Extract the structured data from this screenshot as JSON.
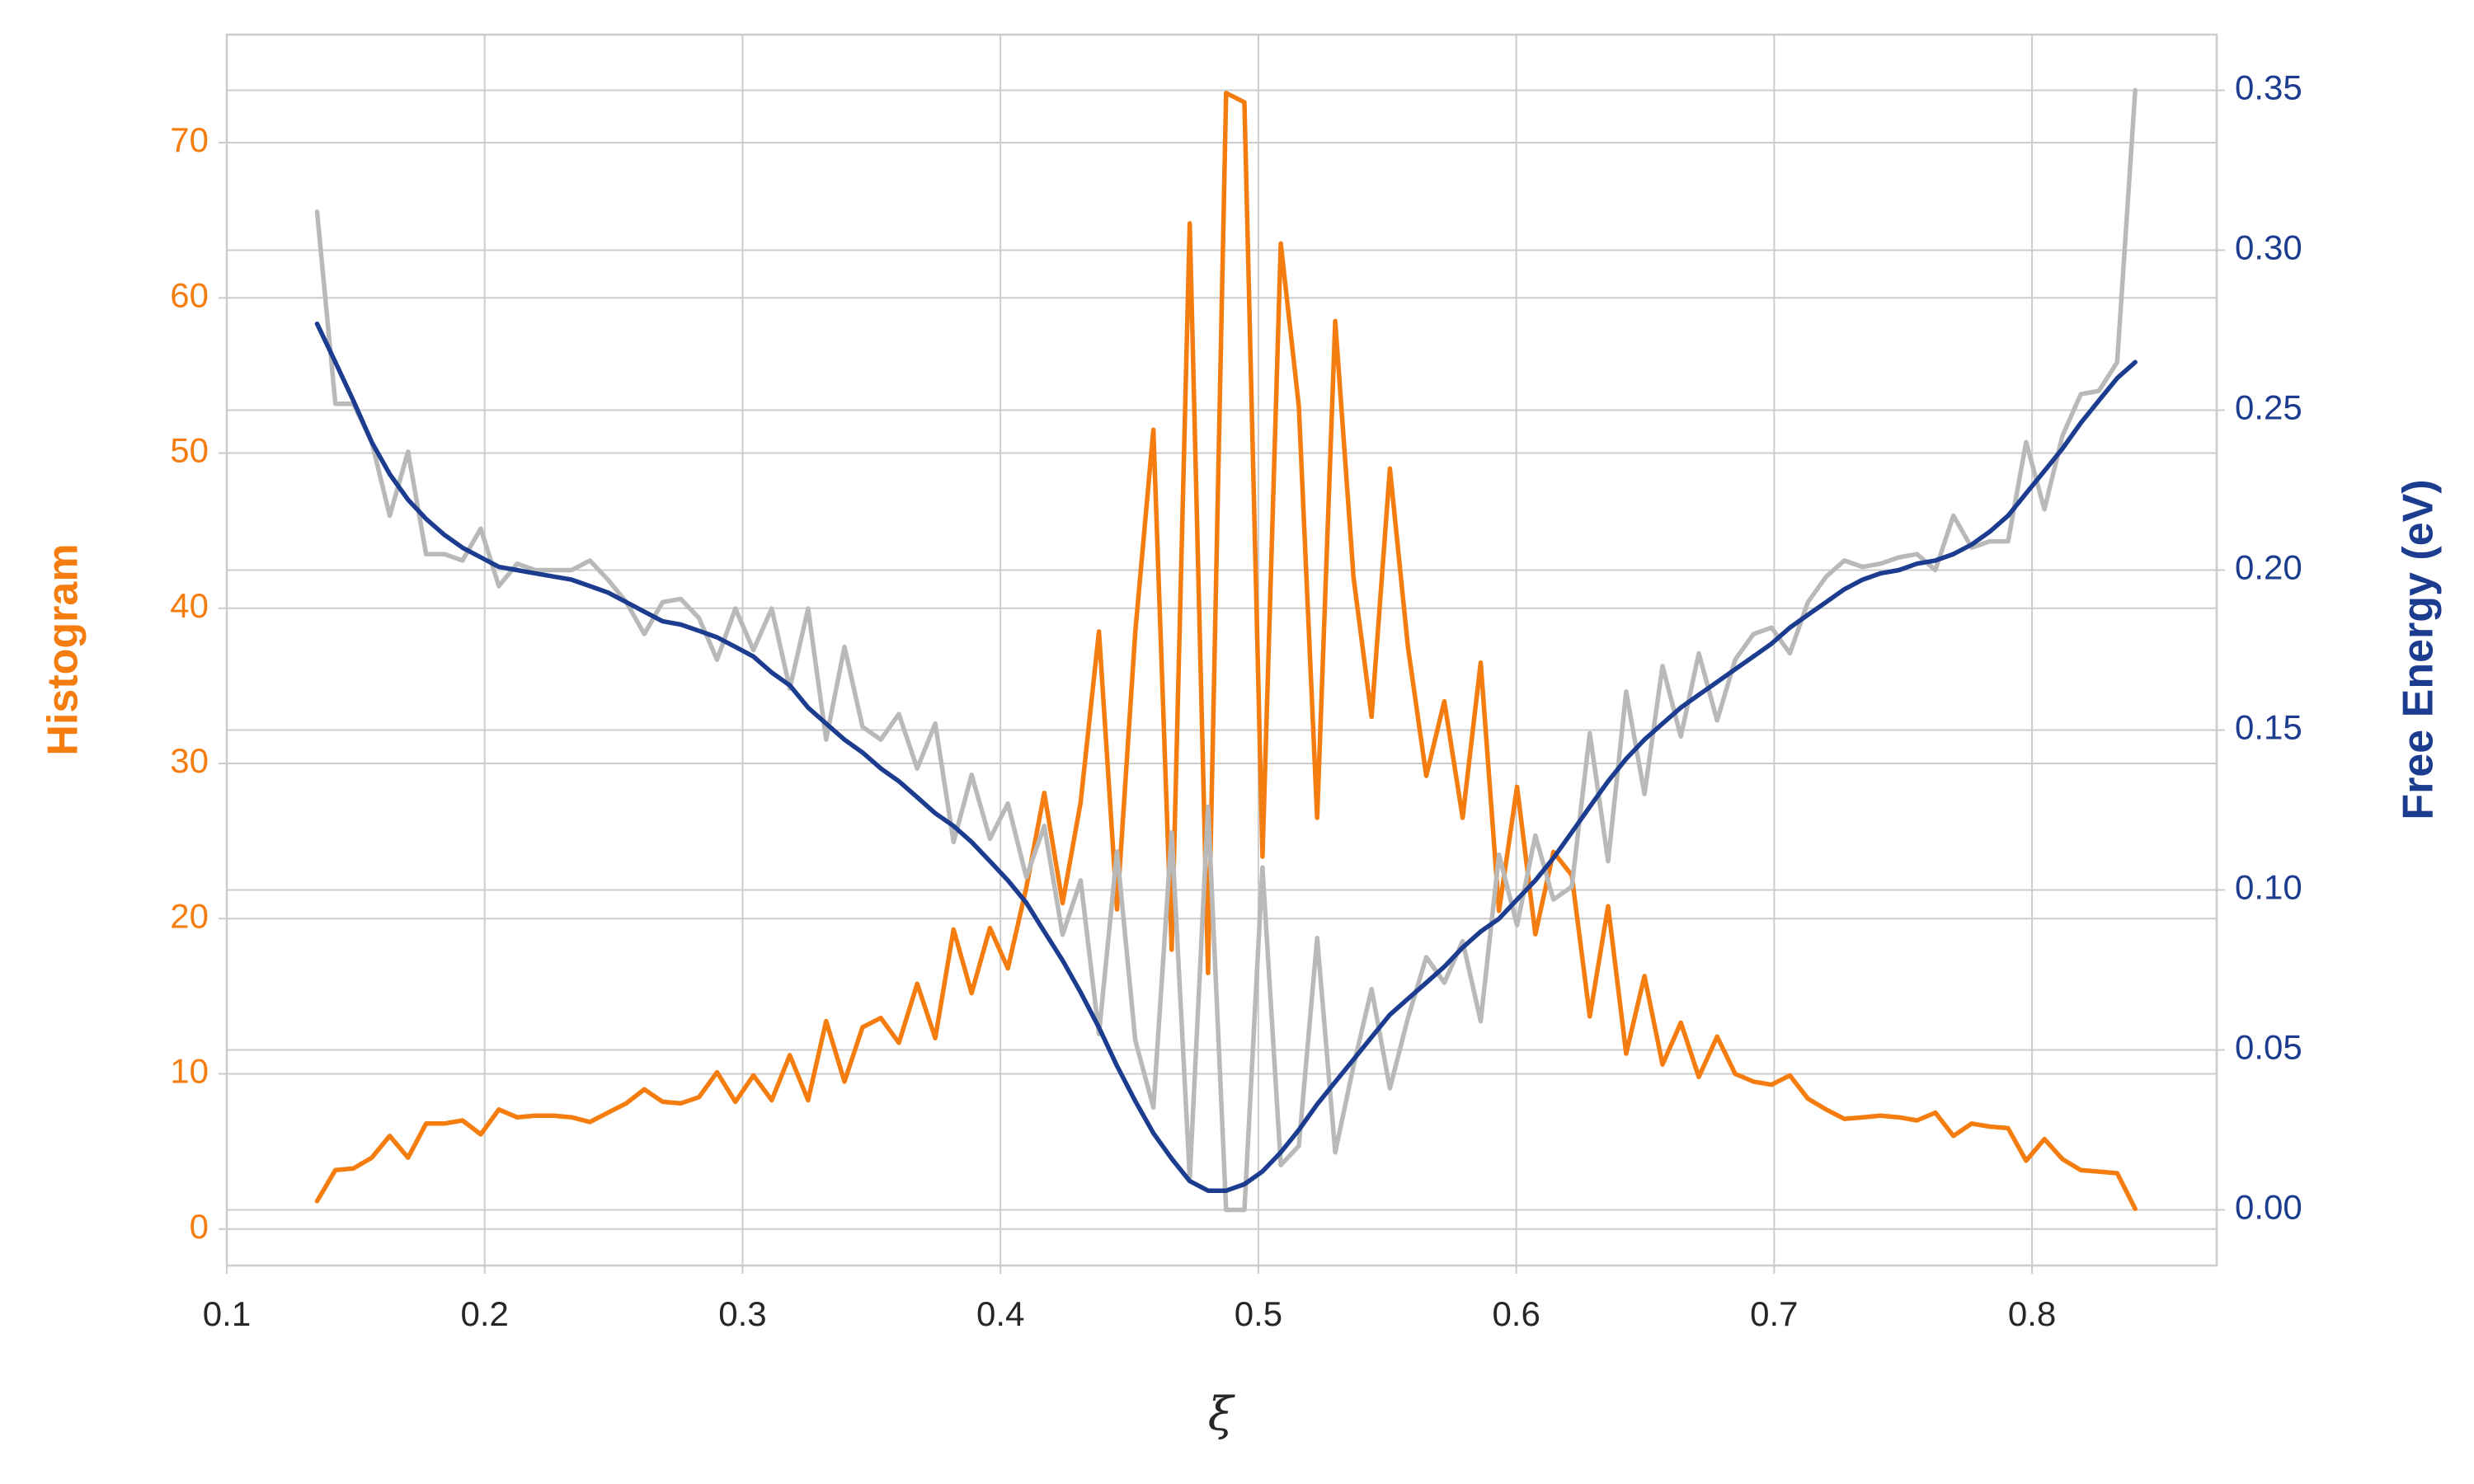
{
  "chart_data": {
    "type": "line",
    "x_label": "ξ",
    "y_label": "Histogram",
    "y2_label": "Free Energy (eV)",
    "x": [
      0.135,
      0.1421,
      0.1491,
      0.1562,
      0.1632,
      0.1703,
      0.1773,
      0.1844,
      0.1914,
      0.1985,
      0.2055,
      0.2126,
      0.2196,
      0.2267,
      0.2337,
      0.2408,
      0.2478,
      0.2549,
      0.2619,
      0.269,
      0.276,
      0.2831,
      0.2901,
      0.2972,
      0.3042,
      0.3113,
      0.3183,
      0.3254,
      0.3324,
      0.3395,
      0.3465,
      0.3536,
      0.3606,
      0.3677,
      0.3747,
      0.3818,
      0.3888,
      0.3959,
      0.4029,
      0.41,
      0.417,
      0.4241,
      0.4311,
      0.4382,
      0.4452,
      0.4523,
      0.4593,
      0.4664,
      0.4734,
      0.4805,
      0.4875,
      0.4946,
      0.5016,
      0.5087,
      0.5157,
      0.5228,
      0.5298,
      0.5369,
      0.5439,
      0.551,
      0.558,
      0.5651,
      0.5721,
      0.5792,
      0.5862,
      0.5933,
      0.6003,
      0.6074,
      0.6144,
      0.6215,
      0.6285,
      0.6356,
      0.6426,
      0.6497,
      0.6567,
      0.6638,
      0.6708,
      0.6779,
      0.6849,
      0.692,
      0.699,
      0.7061,
      0.7131,
      0.7202,
      0.7272,
      0.7343,
      0.7413,
      0.7484,
      0.7554,
      0.7625,
      0.7695,
      0.7766,
      0.7836,
      0.7907,
      0.7977,
      0.8048,
      0.8118,
      0.8189,
      0.8259,
      0.833,
      0.84
    ],
    "series": [
      {
        "color": "#f57d0f",
        "axis": "y",
        "values": [
          1.8,
          3.8,
          3.9,
          4.6,
          6,
          4.6,
          6.8,
          6.8,
          7,
          6.1,
          7.7,
          7.2,
          7.3,
          7.3,
          7.2,
          6.9,
          7.5,
          8.1,
          9,
          8.2,
          8.1,
          8.5,
          10.1,
          8.2,
          9.9,
          8.3,
          11.2,
          8.3,
          13.4,
          9.5,
          13,
          13.6,
          12,
          15.8,
          12.3,
          19.3,
          15.2,
          19.4,
          16.8,
          22,
          28.1,
          21,
          27.5,
          38.5,
          20.6,
          38.5,
          51.5,
          18,
          64.8,
          16.5,
          73.2,
          72.6,
          24,
          63.5,
          53,
          26.5,
          58.5,
          42,
          33,
          49,
          37.5,
          29.2,
          34,
          26.5,
          36.5,
          20.5,
          28.5,
          19,
          24.3,
          22.8,
          13.7,
          20.8,
          11.3,
          16.3,
          10.6,
          13.3,
          9.8,
          12.4,
          10,
          9.5,
          9.3,
          9.9,
          8.4,
          7.7,
          7.1,
          7.2,
          7.3,
          7.2,
          7,
          7.5,
          6,
          6.8,
          6.6,
          6.5,
          4.4,
          5.8,
          4.5,
          3.8,
          3.7,
          3.6,
          1.3
        ]
      },
      {
        "color": "#b9b9b9",
        "axis": "y2",
        "values": [
          0.312,
          0.252,
          0.252,
          0.24,
          0.217,
          0.237,
          0.205,
          0.205,
          0.203,
          0.213,
          0.195,
          0.202,
          0.2,
          0.2,
          0.2,
          0.203,
          0.197,
          0.19,
          0.18,
          0.19,
          0.191,
          0.185,
          0.172,
          0.188,
          0.175,
          0.188,
          0.163,
          0.188,
          0.147,
          0.176,
          0.151,
          0.147,
          0.155,
          0.138,
          0.152,
          0.115,
          0.136,
          0.116,
          0.127,
          0.104,
          0.12,
          0.086,
          0.103,
          0.055,
          0.112,
          0.053,
          0.032,
          0.118,
          0.01,
          0.126,
          0.0,
          0.0,
          0.107,
          0.014,
          0.02,
          0.085,
          0.018,
          0.045,
          0.069,
          0.038,
          0.06,
          0.079,
          0.071,
          0.084,
          0.059,
          0.111,
          0.089,
          0.117,
          0.097,
          0.101,
          0.149,
          0.109,
          0.162,
          0.13,
          0.17,
          0.148,
          0.174,
          0.153,
          0.172,
          0.18,
          0.182,
          0.174,
          0.19,
          0.198,
          0.203,
          0.201,
          0.202,
          0.204,
          0.205,
          0.2,
          0.217,
          0.207,
          0.209,
          0.209,
          0.24,
          0.219,
          0.242,
          0.255,
          0.256,
          0.265,
          0.35
        ]
      },
      {
        "color": "#1c3d8f",
        "axis": "y2",
        "values": [
          0.277,
          0.265,
          0.253,
          0.24,
          0.23,
          0.222,
          0.216,
          0.211,
          0.207,
          0.204,
          0.201,
          0.2,
          0.199,
          0.198,
          0.197,
          0.195,
          0.193,
          0.19,
          0.187,
          0.184,
          0.183,
          0.181,
          0.179,
          0.176,
          0.173,
          0.168,
          0.164,
          0.157,
          0.152,
          0.147,
          0.143,
          0.138,
          0.134,
          0.129,
          0.124,
          0.12,
          0.115,
          0.109,
          0.103,
          0.096,
          0.087,
          0.078,
          0.068,
          0.057,
          0.045,
          0.034,
          0.024,
          0.016,
          0.009,
          0.006,
          0.006,
          0.008,
          0.012,
          0.018,
          0.025,
          0.033,
          0.04,
          0.047,
          0.054,
          0.061,
          0.066,
          0.071,
          0.076,
          0.082,
          0.087,
          0.091,
          0.097,
          0.103,
          0.11,
          0.118,
          0.126,
          0.134,
          0.141,
          0.147,
          0.152,
          0.157,
          0.161,
          0.165,
          0.169,
          0.173,
          0.177,
          0.182,
          0.186,
          0.19,
          0.194,
          0.197,
          0.199,
          0.2,
          0.202,
          0.203,
          0.205,
          0.208,
          0.212,
          0.217,
          0.224,
          0.231,
          0.238,
          0.246,
          0.253,
          0.26,
          0.265
        ]
      }
    ],
    "xlim": [
      0.1,
      0.8716
    ],
    "xticks": [
      0.1,
      0.2,
      0.3,
      0.4,
      0.5,
      0.6,
      0.7,
      0.8
    ],
    "ylim": [
      -2.35,
      76.96
    ],
    "yticks": [
      0,
      10,
      20,
      30,
      40,
      50,
      60,
      70
    ],
    "y2lim": [
      -0.0174,
      0.3674
    ],
    "y2ticks": [
      {
        "value": 0,
        "label": "0.00"
      },
      0.05,
      {
        "value": 0.1,
        "label": "0.10"
      },
      0.15,
      {
        "value": 0.2,
        "label": "0.20"
      },
      0.25,
      {
        "value": 0.3,
        "label": "0.30"
      },
      0.35
    ],
    "y_color": "#f57d0f",
    "y2_color": "#1c3d8f",
    "grid": true
  }
}
